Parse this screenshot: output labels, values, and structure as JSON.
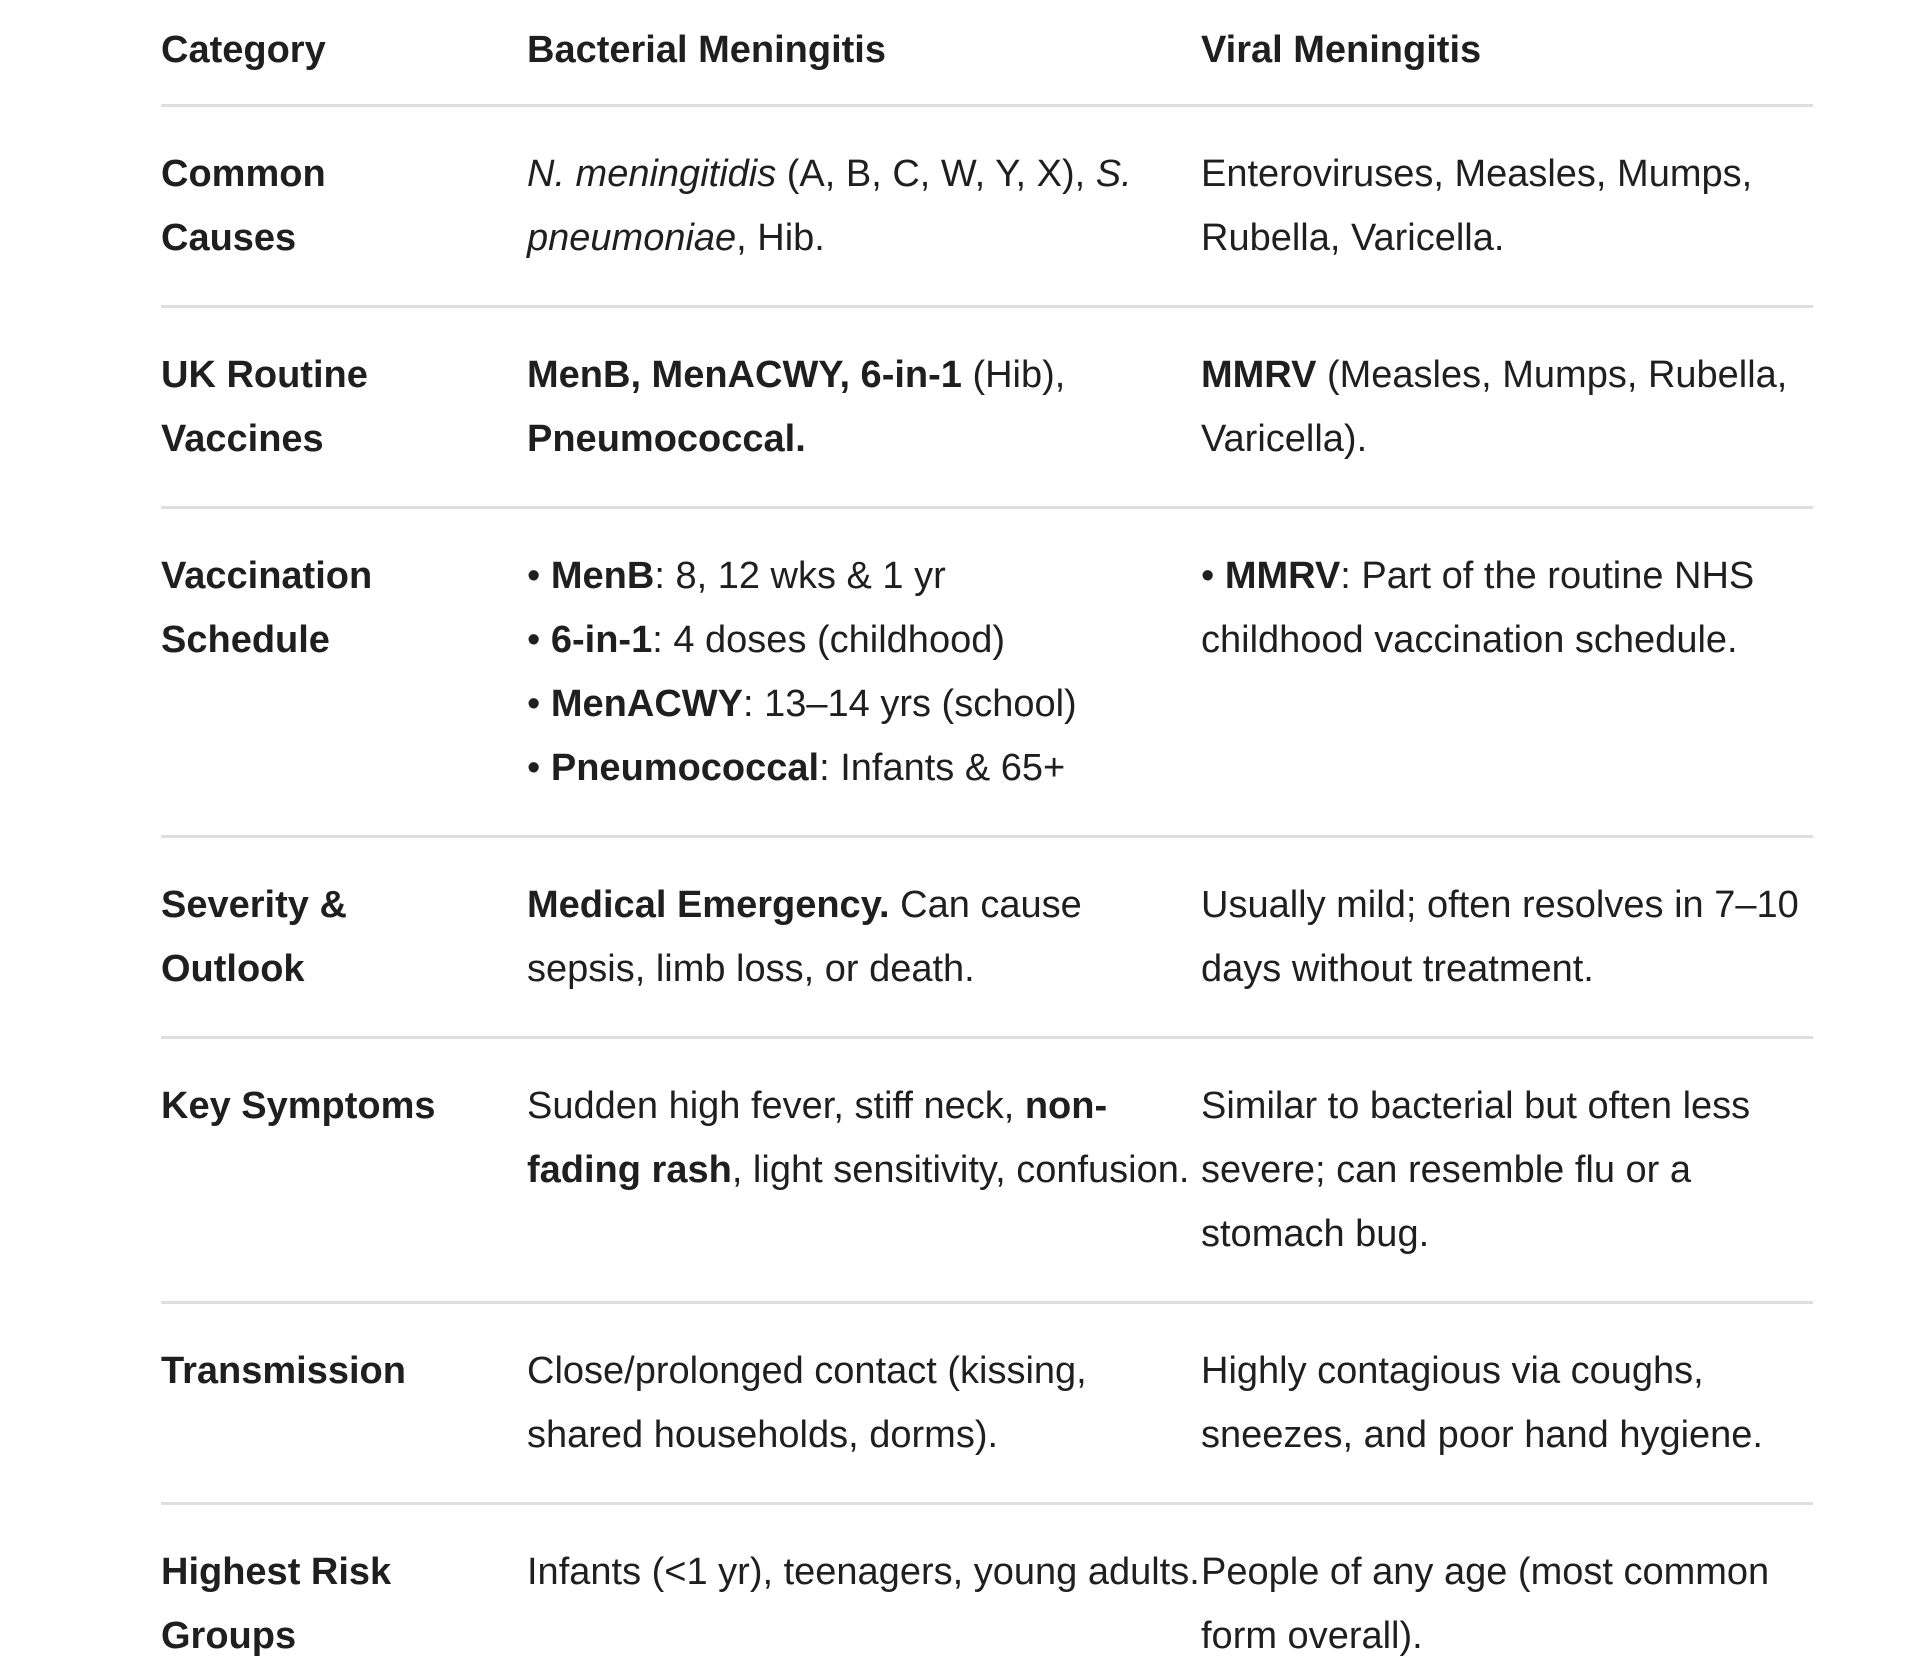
{
  "table": {
    "header": [
      "Category",
      "Bacterial Meningitis",
      "Viral Meningitis"
    ],
    "rows": [
      {
        "cells": [
          "Common Causes",
          [
            {
              "text": "N. meningitidis",
              "italic": true
            },
            {
              "text": " (A, B, C, W, Y, X), "
            },
            {
              "text": "S. pneumoniae",
              "italic": true
            },
            {
              "text": ", Hib."
            }
          ],
          [
            {
              "text": "Enteroviruses, Measles, Mumps, Rubella, Varicella."
            }
          ]
        ]
      },
      {
        "cells": [
          "UK Routine Vaccines",
          [
            {
              "text": "MenB, MenACWY, 6-in-1",
              "bold": true
            },
            {
              "text": " (Hib), "
            },
            {
              "text": "Pneumococcal.",
              "bold": true
            }
          ],
          [
            {
              "text": "MMRV",
              "bold": true
            },
            {
              "text": " (Measles, Mumps, Rubella, Varicella)."
            }
          ]
        ]
      },
      {
        "cells": [
          "Vaccination Schedule",
          {
            "bullets": [
              [
                {
                  "text": "MenB",
                  "bold": true
                },
                {
                  "text": ": 8, 12 wks & 1 yr"
                }
              ],
              [
                {
                  "text": "6-in-1",
                  "bold": true
                },
                {
                  "text": ": 4 doses (childhood)"
                }
              ],
              [
                {
                  "text": "MenACWY",
                  "bold": true
                },
                {
                  "text": ": 13–14 yrs (school)"
                }
              ],
              [
                {
                  "text": "Pneumococcal",
                  "bold": true
                },
                {
                  "text": ": Infants & 65+"
                }
              ]
            ]
          },
          {
            "bullets": [
              [
                {
                  "text": "MMRV",
                  "bold": true
                },
                {
                  "text": ": Part of the routine NHS childhood vaccination schedule."
                }
              ]
            ]
          }
        ]
      },
      {
        "cells": [
          "Severity & Outlook",
          [
            {
              "text": "Medical Emergency.",
              "bold": true
            },
            {
              "text": " Can cause sepsis, limb loss, or death."
            }
          ],
          [
            {
              "text": "Usually mild; often resolves in 7–10 days without treatment."
            }
          ]
        ]
      },
      {
        "cells": [
          "Key Symptoms",
          [
            {
              "text": "Sudden high fever, stiff neck, "
            },
            {
              "text": "non-fading rash",
              "bold": true
            },
            {
              "text": ", light sensitivity, confusion."
            }
          ],
          [
            {
              "text": "Similar to bacterial but often less severe; can resemble flu or a stomach bug."
            }
          ]
        ]
      },
      {
        "cells": [
          "Transmission",
          [
            {
              "text": "Close/prolonged contact (kissing, shared households, dorms)."
            }
          ],
          [
            {
              "text": "Highly contagious via coughs, sneezes, and poor hand hygiene."
            }
          ]
        ]
      },
      {
        "cells": [
          "Highest Risk Groups",
          [
            {
              "text": "Infants (<1 yr), teenagers, young adults."
            }
          ],
          [
            {
              "text": "People of any age (most common form overall)."
            }
          ]
        ]
      }
    ]
  }
}
